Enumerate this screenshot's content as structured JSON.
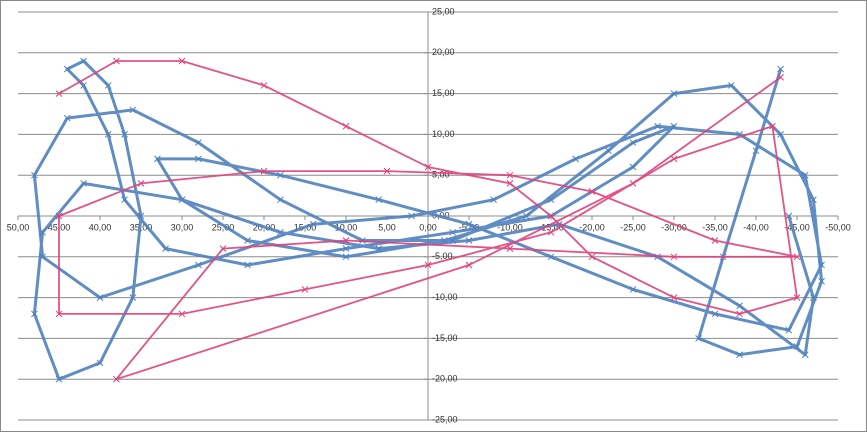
{
  "chart_data": {
    "type": "scatter",
    "xlim": [
      50,
      -50
    ],
    "ylim": [
      -25,
      25
    ],
    "grid": true,
    "xticks": [
      {
        "value": 50,
        "label": "50,00"
      },
      {
        "value": 45,
        "label": "45,00"
      },
      {
        "value": 40,
        "label": "40,00"
      },
      {
        "value": 35,
        "label": "35,00"
      },
      {
        "value": 30,
        "label": "30,00"
      },
      {
        "value": 25,
        "label": "25,00"
      },
      {
        "value": 20,
        "label": "20,00"
      },
      {
        "value": 15,
        "label": "15,00"
      },
      {
        "value": 10,
        "label": "10,00"
      },
      {
        "value": 5,
        "label": "5,00"
      },
      {
        "value": 0,
        "label": "0,00"
      },
      {
        "value": -5,
        "label": "-5,00"
      },
      {
        "value": -10,
        "label": "-10,00"
      },
      {
        "value": -15,
        "label": "-15,00"
      },
      {
        "value": -20,
        "label": "-20,00"
      },
      {
        "value": -25,
        "label": "-25,00"
      },
      {
        "value": -30,
        "label": "-30,00"
      },
      {
        "value": -35,
        "label": "-35,00"
      },
      {
        "value": -40,
        "label": "-40,00"
      },
      {
        "value": -45,
        "label": "-45,00"
      },
      {
        "value": -50,
        "label": "-50,00"
      }
    ],
    "yticks": [
      {
        "value": 25,
        "label": "25,00"
      },
      {
        "value": 20,
        "label": "20,00"
      },
      {
        "value": 15,
        "label": "15,00"
      },
      {
        "value": 10,
        "label": "10,00"
      },
      {
        "value": 5,
        "label": "5,00"
      },
      {
        "value": 0,
        "label": "0,00"
      },
      {
        "value": -5,
        "label": "-5,00"
      },
      {
        "value": -10,
        "label": "-10,00"
      },
      {
        "value": -15,
        "label": "-15,00"
      },
      {
        "value": -20,
        "label": "-20,00"
      },
      {
        "value": -25,
        "label": "-25,00"
      }
    ],
    "series": [
      {
        "color": "#4f81bd",
        "x": [
          -43,
          -40,
          -36,
          -33,
          -38,
          -45,
          -48,
          -47,
          -43,
          -37,
          -30,
          -22,
          -12,
          -2,
          10,
          22,
          30,
          33,
          28,
          18,
          6,
          -5,
          -15,
          -25,
          -35,
          -44,
          -48,
          -46,
          -38,
          -28,
          -18,
          -8,
          2,
          14,
          28,
          40,
          47,
          48,
          44,
          36,
          28,
          18,
          8,
          -3,
          -15,
          -25,
          -30,
          -25,
          -15,
          -3,
          10,
          22,
          32,
          37,
          39,
          42,
          44,
          42,
          39,
          37,
          35,
          36,
          40,
          45,
          48,
          47,
          42,
          30,
          18,
          6,
          -5,
          -16,
          -28,
          -38,
          -46,
          -47,
          -44
        ],
        "values": [
          18,
          8,
          -5,
          -15,
          -17,
          -16,
          -8,
          2,
          10,
          16,
          15,
          8,
          0,
          -3,
          -5,
          -3,
          2,
          7,
          7,
          5,
          2,
          -1,
          -5,
          -9,
          -12,
          -14,
          -6,
          5,
          10,
          11,
          7,
          2,
          0,
          -1,
          -6,
          -10,
          -5,
          5,
          12,
          13,
          9,
          2,
          -3,
          -3,
          2,
          9,
          11,
          6,
          0,
          -2,
          -4,
          -6,
          -4,
          2,
          10,
          16,
          18,
          19,
          16,
          10,
          0,
          -10,
          -18,
          -20,
          -12,
          -2,
          4,
          2,
          -2,
          -4,
          -3,
          -1,
          -5,
          -11,
          -17,
          -10,
          0
        ]
      },
      {
        "color": "#e0407a",
        "x": [
          45,
          38,
          30,
          20,
          10,
          0,
          -10,
          -15,
          -20,
          -30,
          -38,
          -45,
          -42,
          -30,
          -15,
          0,
          15,
          30,
          45,
          45,
          35,
          20,
          5,
          -10,
          -20,
          -35,
          -45,
          -30,
          -10,
          10,
          25,
          38,
          -5,
          -25,
          -43
        ],
        "values": [
          15,
          19,
          19,
          16,
          11,
          6,
          4,
          0,
          -5,
          -10,
          -12,
          -10,
          11,
          7,
          -2,
          -6,
          -9,
          -12,
          -12,
          0,
          4,
          5.5,
          5.5,
          5,
          3,
          -3,
          -5,
          -5,
          -4,
          -3,
          -4,
          -20,
          -6,
          4,
          17
        ]
      }
    ]
  }
}
